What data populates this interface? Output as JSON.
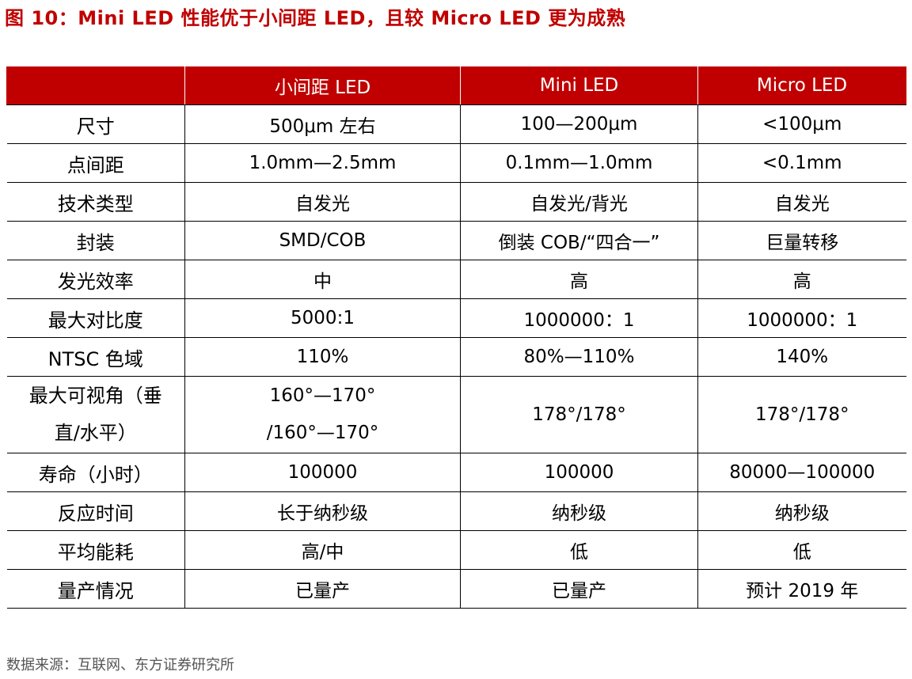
{
  "title": "图 10：Mini LED 性能优于小间距 LED，且较 Micro LED 更为成熟",
  "table": {
    "headers": [
      "",
      "小间距 LED",
      "Mini LED",
      "Micro LED"
    ],
    "rows": [
      {
        "label": "尺寸",
        "cells": [
          "500μm 左右",
          "100—200μm",
          "<100μm"
        ]
      },
      {
        "label": "点间距",
        "cells": [
          "1.0mm—2.5mm",
          "0.1mm—1.0mm",
          "<0.1mm"
        ]
      },
      {
        "label": "技术类型",
        "cells": [
          "自发光",
          "自发光/背光",
          "自发光"
        ]
      },
      {
        "label": "封装",
        "cells": [
          "SMD/COB",
          "倒装 COB/“四合一”",
          "巨量转移"
        ]
      },
      {
        "label": "发光效率",
        "cells": [
          "中",
          "高",
          "高"
        ]
      },
      {
        "label": "最大对比度",
        "cells": [
          "5000:1",
          "1000000：1",
          "1000000：1"
        ]
      },
      {
        "label": "NTSC 色域",
        "cells": [
          "110%",
          "80%—110%",
          "140%"
        ]
      },
      {
        "label_line1": "最大可视角（垂",
        "label_line2": "直/水平）",
        "cells_line1": "160°—170°",
        "cells_line2": "/160°—170°",
        "cells": [
          "178°/178°",
          "178°/178°"
        ]
      },
      {
        "label": "寿命（小时）",
        "cells": [
          "100000",
          "100000",
          "80000—100000"
        ]
      },
      {
        "label": "反应时间",
        "cells": [
          "长于纳秒级",
          "纳秒级",
          "纳秒级"
        ]
      },
      {
        "label": "平均能耗",
        "cells": [
          "高/中",
          "低",
          "低"
        ]
      },
      {
        "label": "量产情况",
        "cells": [
          "已量产",
          "已量产",
          "预计 2019 年"
        ]
      }
    ]
  },
  "source": "数据来源：互联网、东方证券研究所",
  "colors": {
    "accent": "#c00000",
    "header_text": "#ffffff",
    "source_text": "#555555"
  }
}
